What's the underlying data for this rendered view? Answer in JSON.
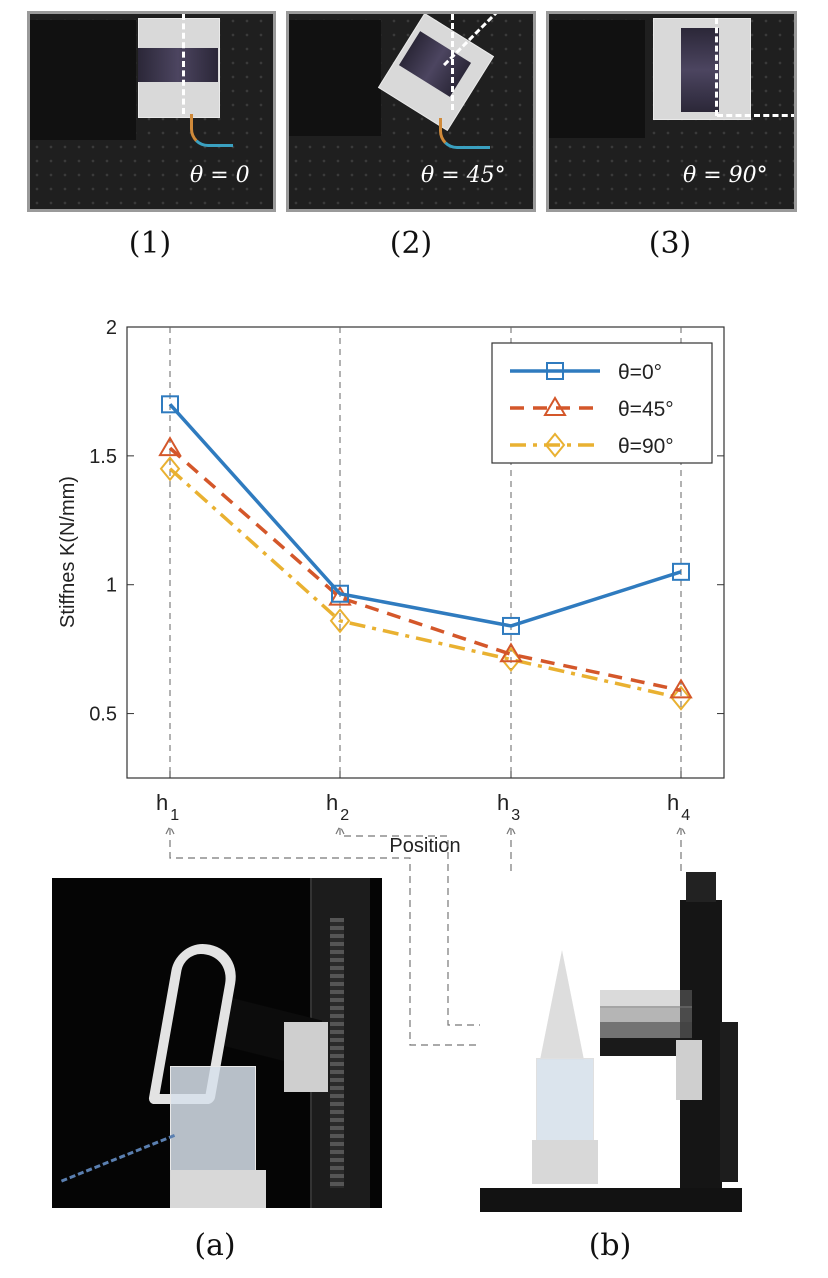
{
  "top_panels": [
    {
      "theta_label": "θ = 0",
      "caption": "(1)"
    },
    {
      "theta_label": "θ = 45°",
      "caption": "(2)"
    },
    {
      "theta_label": "θ = 90°",
      "caption": "(3)"
    }
  ],
  "bottom_captions": {
    "a": "(a)",
    "b": "(b)"
  },
  "chart_data": {
    "type": "line",
    "categories": [
      "h1",
      "h2",
      "h3",
      "h4"
    ],
    "category_labels": [
      {
        "base": "h",
        "sub": "1"
      },
      {
        "base": "h",
        "sub": "2"
      },
      {
        "base": "h",
        "sub": "3"
      },
      {
        "base": "h",
        "sub": "4"
      }
    ],
    "series": [
      {
        "name": "θ=0°",
        "values": [
          1.7,
          0.965,
          0.84,
          1.05
        ],
        "color": "#2f7bbf",
        "marker": "square",
        "dash": "solid"
      },
      {
        "name": "θ=45°",
        "values": [
          1.53,
          0.95,
          0.73,
          0.59
        ],
        "color": "#d4572a",
        "marker": "triangle",
        "dash": "dashed"
      },
      {
        "name": "θ=90°",
        "values": [
          1.45,
          0.86,
          0.71,
          0.56
        ],
        "color": "#e9b131",
        "marker": "diamond",
        "dash": "dashdot"
      }
    ],
    "ylabel": "Stiffnes K(N/mm)",
    "xlabel": "Position",
    "ylim": [
      0.25,
      2
    ],
    "yticks": [
      0.5,
      1,
      1.5,
      2
    ],
    "ytick_labels": [
      "0.5",
      "1",
      "1.5",
      "2"
    ],
    "grid": "vertical dashed at categories",
    "legend_position": "top-right"
  }
}
